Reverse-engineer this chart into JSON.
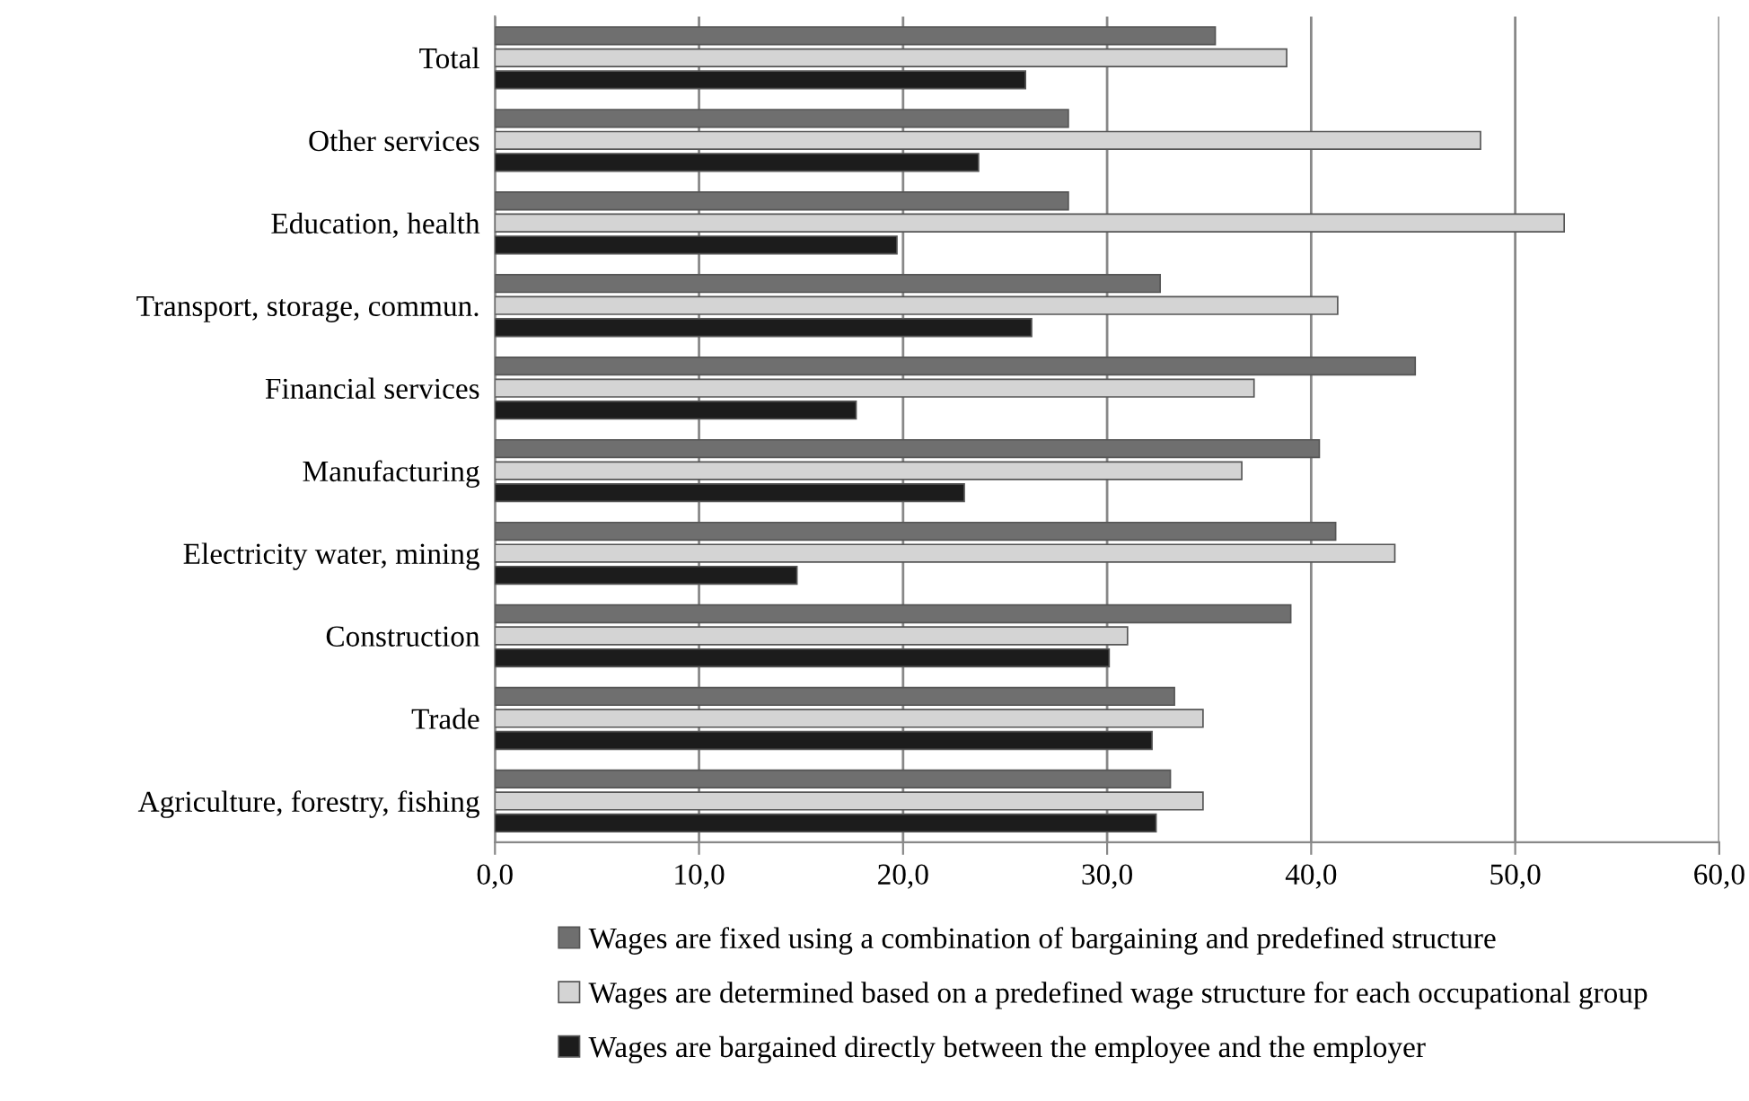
{
  "chart_data": {
    "type": "bar",
    "orientation": "horizontal",
    "categories": [
      "Total",
      "Other services",
      "Education, health",
      "Transport, storage, commun.",
      "Financial services",
      "Manufacturing",
      "Electricity water, mining",
      "Construction",
      "Trade",
      "Agriculture, forestry, fishing"
    ],
    "series": [
      {
        "name": "Wages are fixed using a combination of bargaining and predefined structure",
        "color": "#6f6f6f",
        "values": [
          35.3,
          28.1,
          28.1,
          32.6,
          45.1,
          40.4,
          41.2,
          39.0,
          33.3,
          33.1
        ]
      },
      {
        "name": "Wages are determined based on a predefined wage structure for each occupational group",
        "color": "#d4d4d4",
        "values": [
          38.8,
          48.3,
          52.4,
          41.3,
          37.2,
          36.6,
          44.1,
          31.0,
          34.7,
          34.7
        ]
      },
      {
        "name": "Wages are bargained directly between the employee and the employer",
        "color": "#1c1c1c",
        "values": [
          26.0,
          23.7,
          19.7,
          26.3,
          17.7,
          23.0,
          14.8,
          30.1,
          32.2,
          32.4
        ]
      }
    ],
    "xlim": [
      0,
      60
    ],
    "xticks": [
      {
        "value": 0,
        "label": "0,0"
      },
      {
        "value": 10,
        "label": "10,0"
      },
      {
        "value": 20,
        "label": "20,0"
      },
      {
        "value": 30,
        "label": "30,0"
      },
      {
        "value": 40,
        "label": "40,0"
      },
      {
        "value": 50,
        "label": "50,0"
      },
      {
        "value": 60,
        "label": "60,0"
      }
    ],
    "grid": "x",
    "legend": "bottom"
  }
}
